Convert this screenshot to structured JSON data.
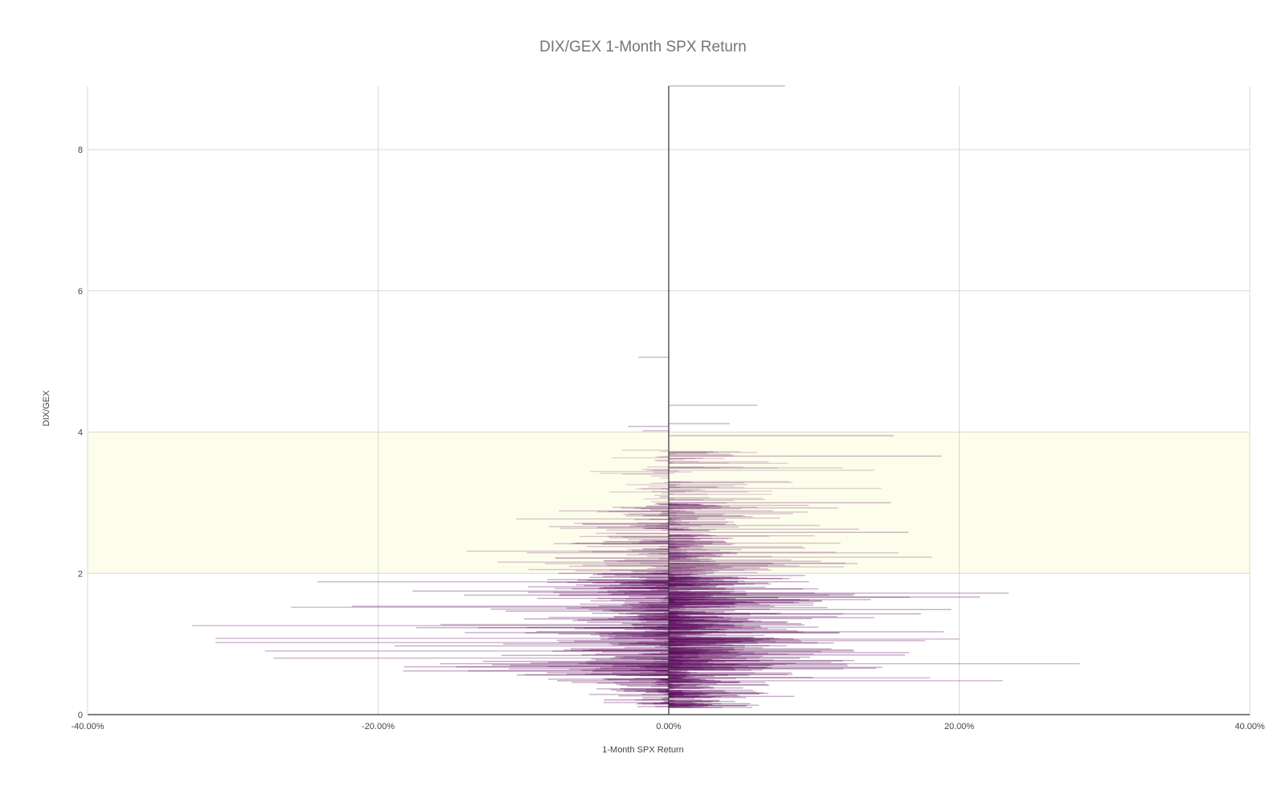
{
  "chart_data": {
    "type": "bar",
    "orientation": "horizontal",
    "title": "DIX/GEX 1-Month SPX Return",
    "xlabel": "1-Month SPX Return",
    "ylabel": "DIX/GEX",
    "xlim": [
      -0.4,
      0.4
    ],
    "ylim": [
      0,
      8.9
    ],
    "x_ticks": [
      "-40.00%",
      "-20.00%",
      "0.00%",
      "20.00%",
      "40.00%"
    ],
    "x_tick_values": [
      -0.4,
      -0.2,
      0.0,
      0.2,
      0.4
    ],
    "y_ticks": [
      "0",
      "2",
      "4",
      "6",
      "8"
    ],
    "y_tick_values": [
      0,
      2,
      4,
      6,
      8
    ],
    "grid": true,
    "legend": "none",
    "highlight_band": {
      "y_from": 2,
      "y_to": 4,
      "color": "#fdfdec"
    },
    "colors": {
      "bar": "#5c0a5c",
      "grid": "#d9d9d9",
      "zero_line": "#333333"
    },
    "outlier_bars": [
      {
        "y": 8.9,
        "x": 0.08
      },
      {
        "y": 5.06,
        "x": -0.021
      },
      {
        "y": 4.38,
        "x": 0.061
      },
      {
        "y": 4.12,
        "x": 0.042
      },
      {
        "y": 4.08,
        "x": -0.028
      },
      {
        "y": 4.02,
        "x": -0.018
      },
      {
        "y": 3.95,
        "x": 0.155
      },
      {
        "y": 3.66,
        "x": 0.188
      },
      {
        "y": 3.0,
        "x": 0.153
      },
      {
        "y": 2.58,
        "x": 0.165
      },
      {
        "y": 1.88,
        "x": -0.242
      },
      {
        "y": 1.72,
        "x": 0.234
      },
      {
        "y": 1.52,
        "x": -0.26
      },
      {
        "y": 1.26,
        "x": -0.328
      },
      {
        "y": 1.08,
        "x": -0.312
      },
      {
        "y": 1.07,
        "x": 0.2
      },
      {
        "y": 1.02,
        "x": -0.312
      },
      {
        "y": 0.9,
        "x": -0.278
      },
      {
        "y": 0.8,
        "x": -0.272
      },
      {
        "y": 0.72,
        "x": 0.283
      },
      {
        "y": 0.52,
        "x": 0.18
      },
      {
        "y": 0.48,
        "x": 0.23
      }
    ]
  }
}
